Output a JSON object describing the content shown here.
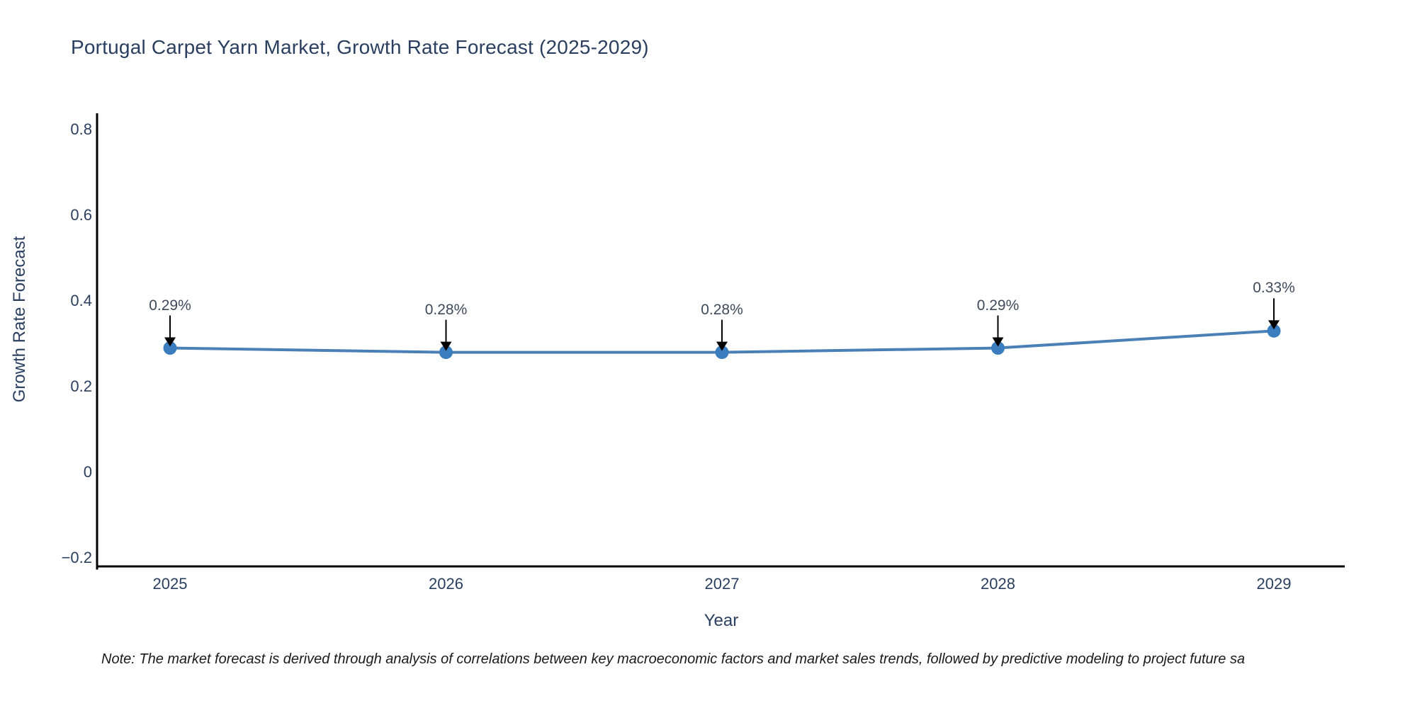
{
  "chart_data": {
    "type": "line",
    "title": "Portugal Carpet Yarn Market, Growth Rate Forecast (2025-2029)",
    "xlabel": "Year",
    "ylabel": "Growth Rate Forecast",
    "categories": [
      "2025",
      "2026",
      "2027",
      "2028",
      "2029"
    ],
    "series": [
      {
        "name": "Growth Rate Forecast",
        "values": [
          0.29,
          0.28,
          0.28,
          0.29,
          0.33
        ],
        "point_labels": [
          "0.29%",
          "0.28%",
          "0.28%",
          "0.29%",
          "0.33%"
        ]
      }
    ],
    "ylim": [
      -0.2,
      0.8
    ],
    "yticks": {
      "values": [
        -0.2,
        0,
        0.2,
        0.4,
        0.6,
        0.8
      ],
      "labels": [
        "−0.2",
        "0",
        "0.2",
        "0.4",
        "0.6",
        "0.8"
      ]
    },
    "grid": false,
    "legend_position": "none",
    "annotation_style": "value-label-with-down-arrow",
    "colors": {
      "line": "#4a80b5",
      "marker": "#3a7ebf",
      "axis": "#000000",
      "text": "#2a3f5f",
      "annotation": "#3d4a5c",
      "arrow": "#000000",
      "background": "#ffffff"
    }
  },
  "note": {
    "text": "Note: The market forecast is derived through analysis of correlations between key macroeconomic factors and market sales trends, followed by predictive modeling to project future sa"
  }
}
